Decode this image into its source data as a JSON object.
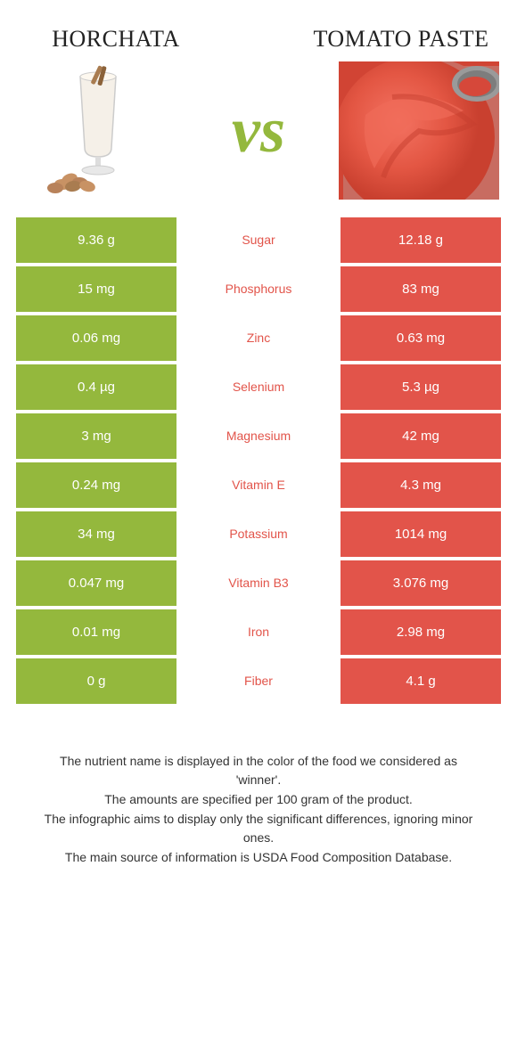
{
  "colors": {
    "left": "#94b83d",
    "right": "#e2544a",
    "vs": "#94b83d",
    "background": "#ffffff"
  },
  "left_title": "Horchata",
  "right_title": "Tomato paste",
  "vs_label": "vs",
  "rows": [
    {
      "left": "9.36 g",
      "label": "Sugar",
      "right": "12.18 g",
      "winner": "right"
    },
    {
      "left": "15 mg",
      "label": "Phosphorus",
      "right": "83 mg",
      "winner": "right"
    },
    {
      "left": "0.06 mg",
      "label": "Zinc",
      "right": "0.63 mg",
      "winner": "right"
    },
    {
      "left": "0.4 µg",
      "label": "Selenium",
      "right": "5.3 µg",
      "winner": "right"
    },
    {
      "left": "3 mg",
      "label": "Magnesium",
      "right": "42 mg",
      "winner": "right"
    },
    {
      "left": "0.24 mg",
      "label": "Vitamin E",
      "right": "4.3 mg",
      "winner": "right"
    },
    {
      "left": "34 mg",
      "label": "Potassium",
      "right": "1014 mg",
      "winner": "right"
    },
    {
      "left": "0.047 mg",
      "label": "Vitamin B3",
      "right": "3.076 mg",
      "winner": "right"
    },
    {
      "left": "0.01 mg",
      "label": "Iron",
      "right": "2.98 mg",
      "winner": "right"
    },
    {
      "left": "0 g",
      "label": "Fiber",
      "right": "4.1 g",
      "winner": "right"
    }
  ],
  "footer_lines": [
    "The nutrient name is displayed in the color of the food we considered as 'winner'.",
    "The amounts are specified per 100 gram of the product.",
    "The infographic aims to display only the significant differences, ignoring minor ones.",
    "The main source of information is USDA Food Composition Database."
  ]
}
